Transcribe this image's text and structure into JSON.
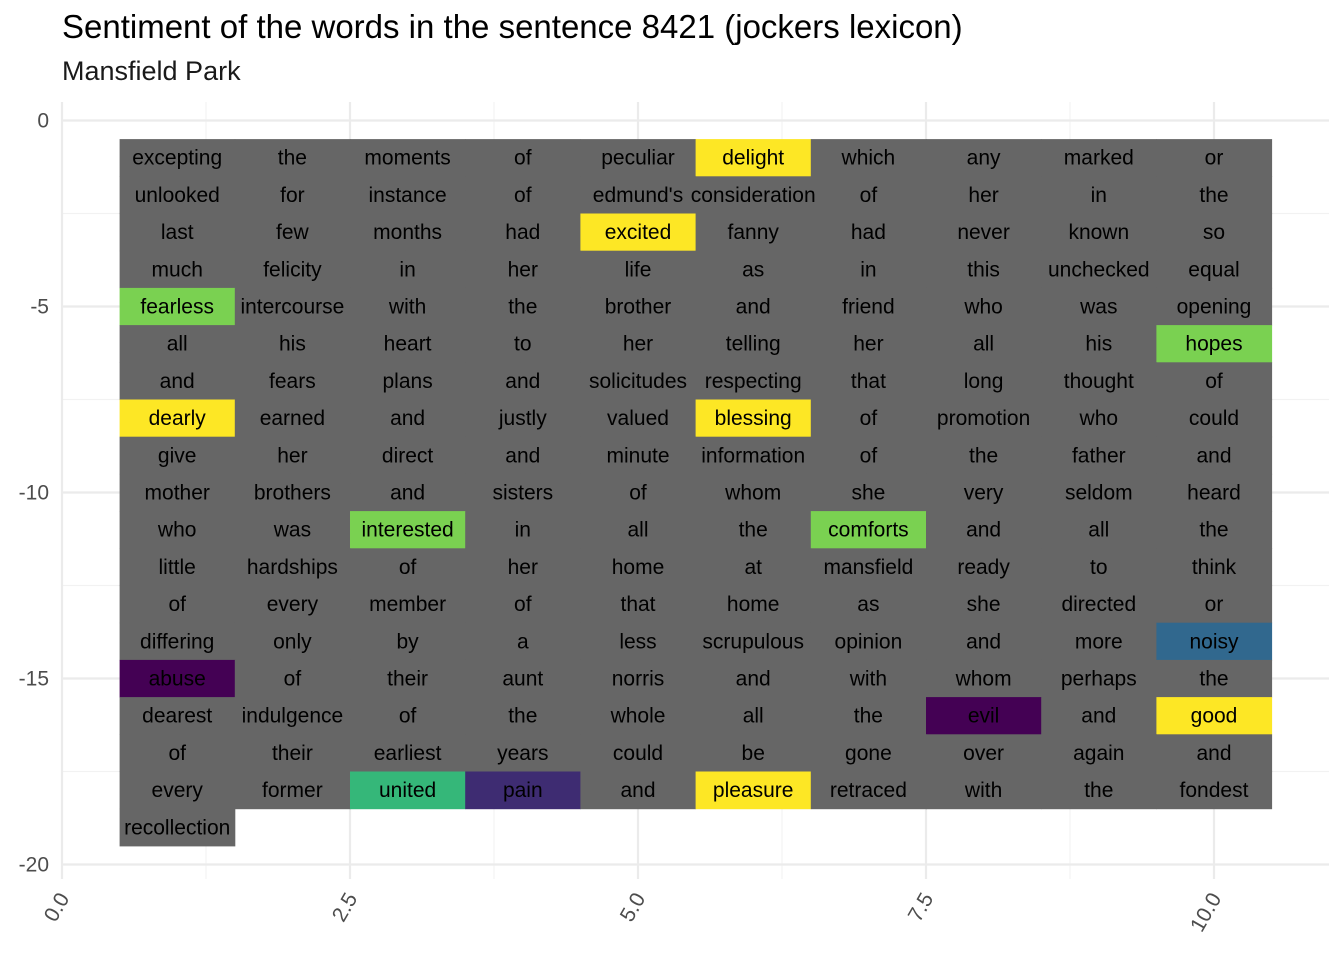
{
  "title": "Sentiment of the words in the sentence 8421 (jockers lexicon)",
  "subtitle": "Mansfield Park",
  "colors": {
    "neutral": "#666666",
    "panel_background": "#ffffff",
    "grid_major": "#ebebeb",
    "grid_minor": "#f2f2f2",
    "tick_label": "#4d4d4d",
    "word_text": "#000000"
  },
  "chart_data": {
    "type": "heatmap",
    "xlim": [
      0,
      10.5
    ],
    "ylim": [
      -20,
      0
    ],
    "x_ticks": [
      "0.0",
      "2.5",
      "5.0",
      "7.5",
      "10.0"
    ],
    "x_tick_values": [
      0,
      2.5,
      5,
      7.5,
      10
    ],
    "y_ticks": [
      "0",
      "-5",
      "-10",
      "-15",
      "-20"
    ],
    "y_tick_values": [
      0,
      -5,
      -10,
      -15,
      -20
    ],
    "grid": true,
    "legend": "none",
    "columns": 10,
    "fill_scale": "viridis",
    "words": [
      "excepting",
      "the",
      "moments",
      "of",
      "peculiar",
      "delight",
      "which",
      "any",
      "marked",
      "or",
      "unlooked",
      "for",
      "instance",
      "of",
      "edmund's",
      "consideration",
      "of",
      "her",
      "in",
      "the",
      "last",
      "few",
      "months",
      "had",
      "excited",
      "fanny",
      "had",
      "never",
      "known",
      "so",
      "much",
      "felicity",
      "in",
      "her",
      "life",
      "as",
      "in",
      "this",
      "unchecked",
      "equal",
      "fearless",
      "intercourse",
      "with",
      "the",
      "brother",
      "and",
      "friend",
      "who",
      "was",
      "opening",
      "all",
      "his",
      "heart",
      "to",
      "her",
      "telling",
      "her",
      "all",
      "his",
      "hopes",
      "and",
      "fears",
      "plans",
      "and",
      "solicitudes",
      "respecting",
      "that",
      "long",
      "thought",
      "of",
      "dearly",
      "earned",
      "and",
      "justly",
      "valued",
      "blessing",
      "of",
      "promotion",
      "who",
      "could",
      "give",
      "her",
      "direct",
      "and",
      "minute",
      "information",
      "of",
      "the",
      "father",
      "and",
      "mother",
      "brothers",
      "and",
      "sisters",
      "of",
      "whom",
      "she",
      "very",
      "seldom",
      "heard",
      "who",
      "was",
      "interested",
      "in",
      "all",
      "the",
      "comforts",
      "and",
      "all",
      "the",
      "little",
      "hardships",
      "of",
      "her",
      "home",
      "at",
      "mansfield",
      "ready",
      "to",
      "think",
      "of",
      "every",
      "member",
      "of",
      "that",
      "home",
      "as",
      "she",
      "directed",
      "or",
      "differing",
      "only",
      "by",
      "a",
      "less",
      "scrupulous",
      "opinion",
      "and",
      "more",
      "noisy",
      "abuse",
      "of",
      "their",
      "aunt",
      "norris",
      "and",
      "with",
      "whom",
      "perhaps",
      "the",
      "dearest",
      "indulgence",
      "of",
      "the",
      "whole",
      "all",
      "the",
      "evil",
      "and",
      "good",
      "of",
      "their",
      "earliest",
      "years",
      "could",
      "be",
      "gone",
      "over",
      "again",
      "and",
      "every",
      "former",
      "united",
      "pain",
      "and",
      "pleasure",
      "retraced",
      "with",
      "the",
      "fondest",
      "recollection"
    ],
    "sentiment_words": [
      {
        "word": "delight",
        "color": "#fde725"
      },
      {
        "word": "excited",
        "color": "#fde725"
      },
      {
        "word": "fearless",
        "color": "#7ad151"
      },
      {
        "word": "hopes",
        "color": "#7ad151"
      },
      {
        "word": "dearly",
        "color": "#fde725"
      },
      {
        "word": "blessing",
        "color": "#fde725"
      },
      {
        "word": "interested",
        "color": "#7ad151"
      },
      {
        "word": "comforts",
        "color": "#7ad151"
      },
      {
        "word": "noisy",
        "color": "#31688e"
      },
      {
        "word": "abuse",
        "color": "#440154"
      },
      {
        "word": "evil",
        "color": "#440154"
      },
      {
        "word": "good",
        "color": "#fde725"
      },
      {
        "word": "united",
        "color": "#35b779"
      },
      {
        "word": "pain",
        "color": "#3e2c72"
      },
      {
        "word": "pleasure",
        "color": "#fde725"
      }
    ]
  }
}
